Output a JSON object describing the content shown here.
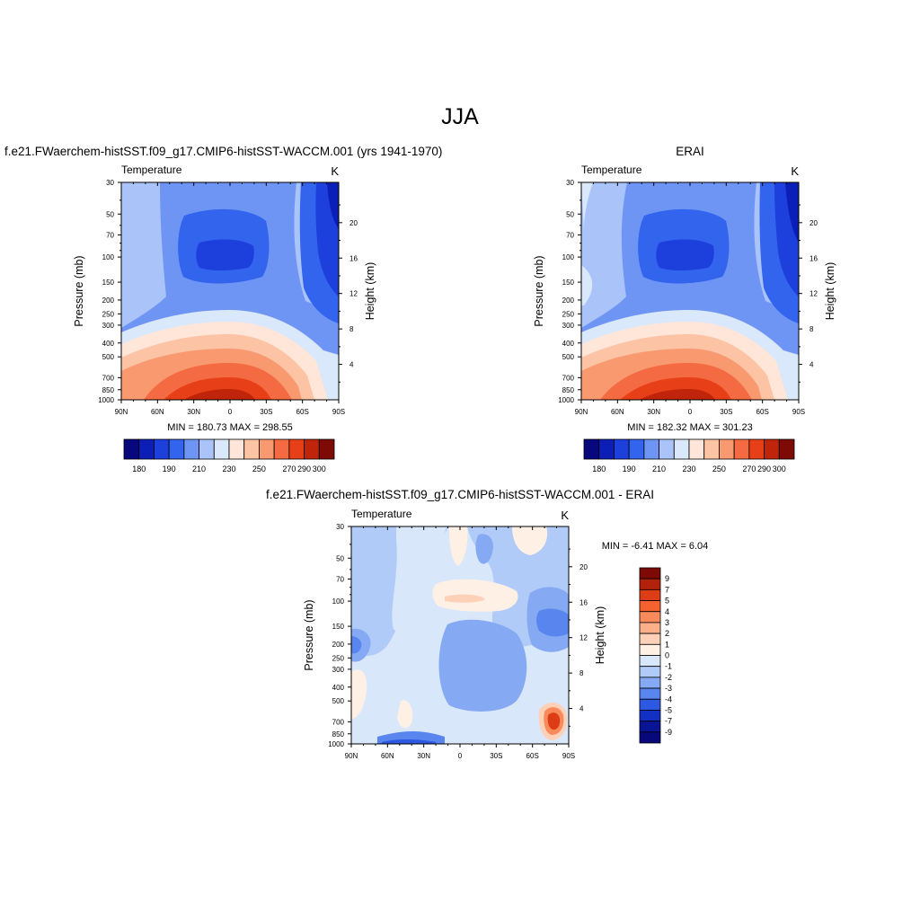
{
  "figure": {
    "season": "JJA"
  },
  "panels": [
    {
      "title": "f.e21.FWaerchem-histSST.f09_g17.CMIP6-histSST-WACCM.001 (yrs 1941-1970)",
      "variable": "Temperature",
      "units": "K",
      "y_label": "Pressure (mb)",
      "y2_label": "Height (km)",
      "stats_text": "MIN = 180.73  MAX = 298.55"
    },
    {
      "title": "ERAI",
      "variable": "Temperature",
      "units": "K",
      "y_label": "Pressure (mb)",
      "y2_label": "Height (km)",
      "stats_text": "MIN = 182.32  MAX = 301.23"
    },
    {
      "title": "f.e21.FWaerchem-histSST.f09_g17.CMIP6-histSST-WACCM.001 - ERAI",
      "variable": "Temperature",
      "units": "K",
      "y_label": "Pressure (mb)",
      "y2_label": "Height (km)",
      "stats_text": "MIN =  -6.41  MAX =   6.04"
    }
  ],
  "chart_data": [
    {
      "type": "heatmap",
      "title": "f.e21.FWaerchem-histSST.f09_g17.CMIP6-histSST-WACCM.001 (yrs 1941-1970)",
      "subtitle": "Temperature",
      "units": "K",
      "xlabel": "",
      "ylabel": "Pressure (mb)",
      "y2label": "Height (km)",
      "x_ticks": [
        "90N",
        "60N",
        "30N",
        "0",
        "30S",
        "60S",
        "90S"
      ],
      "y_ticks": [
        "30",
        "50",
        "70",
        "100",
        "150",
        "200",
        "250",
        "300",
        "400",
        "500",
        "700",
        "850",
        "1000"
      ],
      "y2_ticks": [
        "4",
        "8",
        "12",
        "16",
        "20"
      ],
      "y_scale": "log",
      "min": 180.73,
      "max": 298.55,
      "colorbar_labels": [
        "180",
        "190",
        "210",
        "230",
        "250",
        "270",
        "290",
        "300"
      ],
      "colorbar_orientation": "horizontal"
    },
    {
      "type": "heatmap",
      "title": "ERAI",
      "subtitle": "Temperature",
      "units": "K",
      "xlabel": "",
      "ylabel": "Pressure (mb)",
      "y2label": "Height (km)",
      "x_ticks": [
        "90N",
        "60N",
        "30N",
        "0",
        "30S",
        "60S",
        "90S"
      ],
      "y_ticks": [
        "30",
        "50",
        "70",
        "100",
        "150",
        "200",
        "250",
        "300",
        "400",
        "500",
        "700",
        "850",
        "1000"
      ],
      "y2_ticks": [
        "4",
        "8",
        "12",
        "16",
        "20"
      ],
      "y_scale": "log",
      "min": 182.32,
      "max": 301.23,
      "colorbar_labels": [
        "180",
        "190",
        "210",
        "230",
        "250",
        "270",
        "290",
        "300"
      ],
      "colorbar_orientation": "horizontal"
    },
    {
      "type": "heatmap",
      "title": "f.e21.FWaerchem-histSST.f09_g17.CMIP6-histSST-WACCM.001 - ERAI",
      "subtitle": "Temperature",
      "units": "K",
      "xlabel": "",
      "ylabel": "Pressure (mb)",
      "y2label": "Height (km)",
      "x_ticks": [
        "90N",
        "60N",
        "30N",
        "0",
        "30S",
        "60S",
        "90S"
      ],
      "y_ticks": [
        "30",
        "50",
        "70",
        "100",
        "150",
        "200",
        "250",
        "300",
        "400",
        "500",
        "700",
        "850",
        "1000"
      ],
      "y2_ticks": [
        "4",
        "8",
        "12",
        "16",
        "20"
      ],
      "y_scale": "log",
      "min": -6.41,
      "max": 6.04,
      "colorbar_labels": [
        "9",
        "7",
        "5",
        "4",
        "3",
        "2",
        "1",
        "0",
        "-1",
        "-2",
        "-3",
        "-4",
        "-5",
        "-7",
        "-9"
      ],
      "colorbar_orientation": "vertical"
    }
  ],
  "palettes": {
    "abs": [
      "#08087e",
      "#0b1eb8",
      "#1d3fdc",
      "#3264ee",
      "#6f95f4",
      "#aac4f9",
      "#dae8fb",
      "#ffe6d8",
      "#fcc3a4",
      "#f9996f",
      "#f46a42",
      "#e74019",
      "#c0240a",
      "#7d0a04"
    ],
    "diff": [
      "#7d0a04",
      "#b2210b",
      "#dc3c16",
      "#f4632f",
      "#f98a5c",
      "#fbb08a",
      "#fdd1b7",
      "#fff0e6",
      "#d9e7fb",
      "#b1cbf8",
      "#86a9f3",
      "#5885ee",
      "#2c58e2",
      "#1330c4",
      "#0a1596",
      "#08087a"
    ]
  }
}
